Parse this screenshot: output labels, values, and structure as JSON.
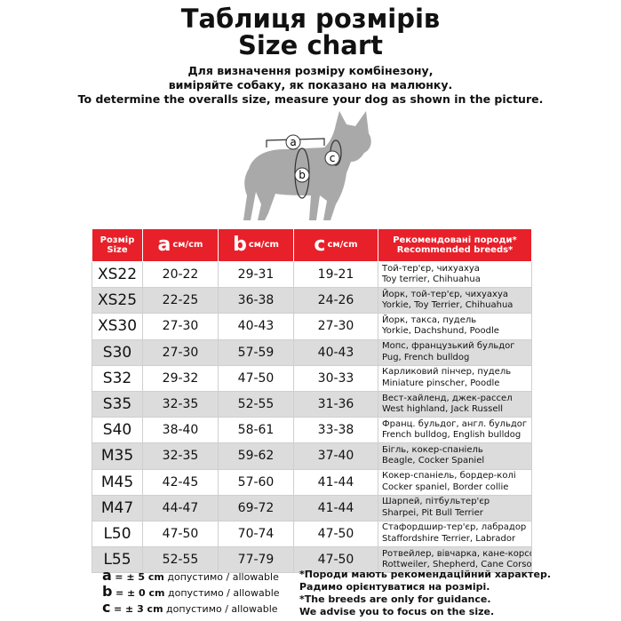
{
  "header": {
    "title": [
      "Таблиця розмірів",
      "Size chart"
    ],
    "subtitle": [
      "Для визначення розміру комбінезону,",
      "виміряйте собаку, як показано на малюнку.",
      "To determine the overalls size, measure your dog as shown in the picture."
    ]
  },
  "diagram": {
    "labels": [
      "a",
      "b",
      "c"
    ]
  },
  "table": {
    "columns": [
      {
        "lines": [
          "Розмір",
          "Size"
        ]
      },
      {
        "letter": "a",
        "unit": "см/cm"
      },
      {
        "letter": "b",
        "unit": "см/cm"
      },
      {
        "letter": "c",
        "unit": "см/cm"
      },
      {
        "lines": [
          "Рекомендовані породи*",
          "Recommended breeds*"
        ]
      }
    ],
    "rows": [
      [
        "XS22",
        "20-22",
        "29-31",
        "19-21",
        [
          "Той-тер'єр, чихуахуа",
          "Toy terrier, Chihuahua"
        ]
      ],
      [
        "XS25",
        "22-25",
        "36-38",
        "24-26",
        [
          "Йорк, той-тер'єр, чихуахуа",
          "Yorkie, Toy Terrier, Chihuahua"
        ]
      ],
      [
        "XS30",
        "27-30",
        "40-43",
        "27-30",
        [
          "Йорк, такса, пудель",
          "Yorkie, Dachshund, Poodle"
        ]
      ],
      [
        "S30",
        "27-30",
        "57-59",
        "40-43",
        [
          "Мопс, французький бульдог",
          "Pug, French bulldog"
        ]
      ],
      [
        "S32",
        "29-32",
        "47-50",
        "30-33",
        [
          "Карликовий пінчер, пудель",
          "Miniature pinscher, Poodle"
        ]
      ],
      [
        "S35",
        "32-35",
        "52-55",
        "31-36",
        [
          "Вест-хайленд, джек-рассел",
          "West highland, Jack Russell"
        ]
      ],
      [
        "S40",
        "38-40",
        "58-61",
        "33-38",
        [
          "Франц. бульдог, англ. бульдог",
          "French bulldog, English bulldog"
        ]
      ],
      [
        "M35",
        "32-35",
        "59-62",
        "37-40",
        [
          "Бігль, кокер-спаніель",
          "Beagle, Cocker Spaniel"
        ]
      ],
      [
        "M45",
        "42-45",
        "57-60",
        "41-44",
        [
          "Кокер-спаніель, бордер-колі",
          "Cocker spaniel, Border collie"
        ]
      ],
      [
        "M47",
        "44-47",
        "69-72",
        "41-44",
        [
          "Шарпей, пітбультер'єр",
          "Sharpei, Pit Bull Terrier"
        ]
      ],
      [
        "L50",
        "47-50",
        "70-74",
        "47-50",
        [
          "Стафордшир-тер'єр, лабрадор",
          "Staffordshire Terrier, Labrador"
        ]
      ],
      [
        "L55",
        "52-55",
        "77-79",
        "47-50",
        [
          "Ротвейлер, вівчарка, кане-корсо",
          "Rottweiler, Shepherd, Cane Corso"
        ]
      ]
    ]
  },
  "footer": {
    "tolerances": [
      {
        "letter": "a",
        "range": "= ± 5 cm",
        "note": "допустимо / allowable"
      },
      {
        "letter": "b",
        "range": "= ± 0 cm",
        "note": "допустимо / allowable"
      },
      {
        "letter": "c",
        "range": "= ± 3 cm",
        "note": "допустимо / allowable"
      }
    ],
    "notes": [
      "*Породи мають рекомендаційний характер.",
      "Радимо орієнтуватися на розмірі.",
      "*The breeds are only for guidance.",
      "We advise you to focus on the size."
    ]
  }
}
